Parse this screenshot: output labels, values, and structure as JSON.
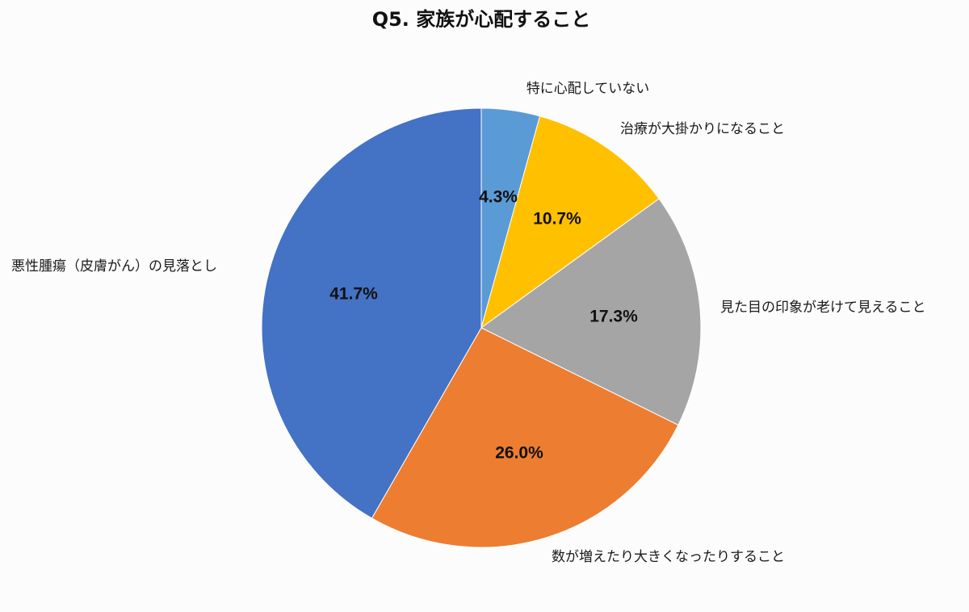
{
  "chart_data": {
    "type": "pie",
    "title": "Q5. 家族が心配すること",
    "categories": [
      "特に心配していない",
      "治療が大掛かりになること",
      "見た目の印象が老けて見えること",
      "数が増えたり大きくなったりすること",
      "悪性腫瘍（皮膚がん）の見落とし"
    ],
    "values": [
      4.3,
      10.7,
      17.3,
      26.0,
      41.7
    ],
    "value_labels": [
      "4.3%",
      "10.7%",
      "17.3%",
      "26.0%",
      "41.7%"
    ],
    "colors": [
      "#5b9bd5",
      "#ffc000",
      "#a5a5a5",
      "#ed7d31",
      "#4472c4"
    ],
    "start": "12 o'clock, clockwise",
    "legend": "none"
  }
}
